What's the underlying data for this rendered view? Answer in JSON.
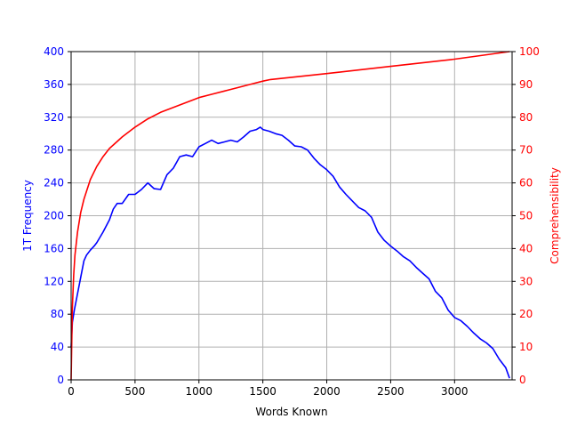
{
  "chart_data": {
    "type": "line",
    "title": "",
    "xlabel": "Words Known",
    "ylabel_left": "1T Frequency",
    "ylabel_right": "Comprehensibility",
    "xlim": [
      0,
      3450
    ],
    "ylim_left": [
      0,
      400
    ],
    "ylim_right": [
      0,
      100
    ],
    "grid": true,
    "x_ticks": [
      0,
      500,
      1000,
      1500,
      2000,
      2500,
      3000
    ],
    "x_tick_labels": [
      "0",
      "500",
      "1000",
      "1500",
      "2000",
      "2500",
      "3000"
    ],
    "y_left_ticks": [
      0,
      40,
      80,
      120,
      160,
      200,
      240,
      280,
      320,
      360,
      400
    ],
    "y_left_tick_labels": [
      "0",
      "40",
      "80",
      "120",
      "160",
      "200",
      "240",
      "280",
      "320",
      "360",
      "400"
    ],
    "y_right_ticks": [
      0,
      10,
      20,
      30,
      40,
      50,
      60,
      70,
      80,
      90,
      100
    ],
    "y_right_tick_labels": [
      "0",
      "10",
      "20",
      "30",
      "40",
      "50",
      "60",
      "70",
      "80",
      "90",
      "100"
    ],
    "colors": {
      "left_axis": "#0000ff",
      "right_axis": "#ff0000",
      "grid": "#b0b0b0"
    },
    "series": [
      {
        "axis": "left",
        "color": "#0000ff",
        "x": [
          0,
          10,
          25,
          50,
          75,
          100,
          120,
          150,
          180,
          200,
          250,
          300,
          330,
          360,
          400,
          450,
          500,
          550,
          600,
          650,
          700,
          750,
          800,
          850,
          900,
          950,
          1000,
          1050,
          1100,
          1150,
          1200,
          1250,
          1300,
          1350,
          1400,
          1450,
          1480,
          1500,
          1550,
          1600,
          1650,
          1700,
          1750,
          1800,
          1850,
          1900,
          1950,
          2000,
          2050,
          2100,
          2150,
          2200,
          2250,
          2300,
          2350,
          2400,
          2450,
          2500,
          2550,
          2600,
          2650,
          2700,
          2750,
          2800,
          2850,
          2900,
          2950,
          3000,
          3050,
          3100,
          3150,
          3200,
          3250,
          3300,
          3350,
          3400,
          3430
        ],
        "values": [
          40,
          70,
          85,
          105,
          125,
          145,
          152,
          158,
          163,
          167,
          180,
          195,
          208,
          215,
          215,
          226,
          226,
          232,
          240,
          233,
          232,
          250,
          258,
          272,
          274,
          272,
          284,
          288,
          292,
          288,
          290,
          292,
          290,
          296,
          303,
          305,
          308,
          305,
          303,
          300,
          298,
          292,
          285,
          284,
          280,
          270,
          262,
          256,
          248,
          235,
          226,
          218,
          210,
          206,
          198,
          180,
          170,
          163,
          157,
          150,
          145,
          137,
          130,
          123,
          108,
          100,
          85,
          76,
          72,
          65,
          57,
          50,
          45,
          38,
          25,
          15,
          2
        ]
      },
      {
        "axis": "right",
        "color": "#ff0000",
        "x": [
          0,
          10,
          20,
          30,
          50,
          75,
          100,
          150,
          200,
          250,
          300,
          400,
          500,
          600,
          700,
          800,
          900,
          1000,
          1100,
          1200,
          1300,
          1400,
          1500,
          1560,
          2000,
          2500,
          3000,
          3430
        ],
        "values": [
          0,
          22,
          32,
          38,
          45,
          51,
          55,
          61,
          65,
          68,
          70.5,
          74,
          77,
          79.5,
          81.5,
          83,
          84.5,
          86,
          87,
          88,
          89,
          90,
          91,
          91.5,
          93.3,
          95.5,
          97.7,
          100
        ]
      }
    ]
  }
}
